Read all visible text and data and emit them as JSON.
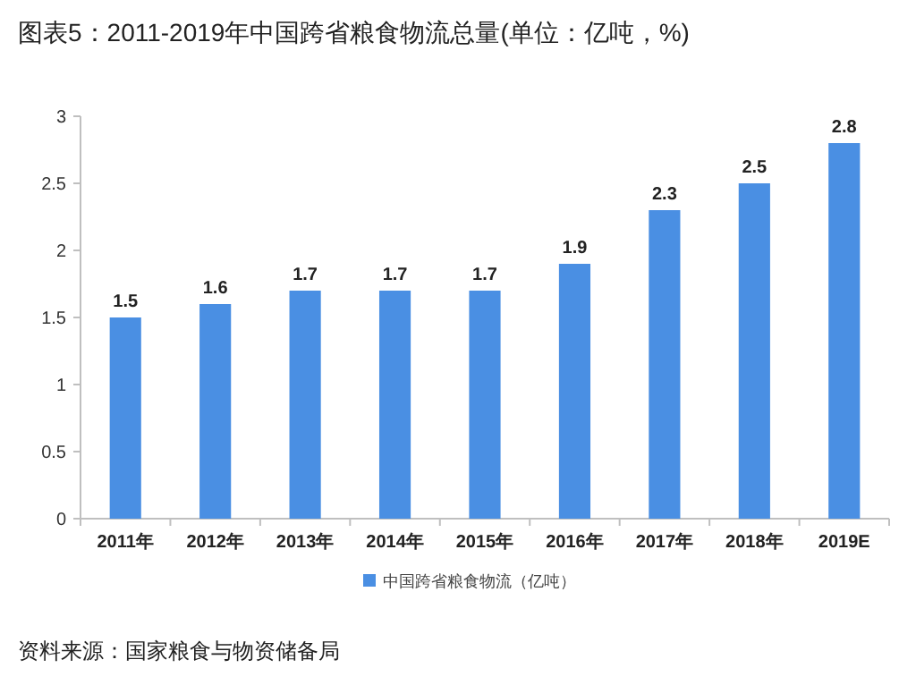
{
  "chart_data": {
    "type": "bar",
    "title": "图表5：2011-2019年中国跨省粮食物流总量(单位：亿吨，%)",
    "categories": [
      "2011年",
      "2012年",
      "2013年",
      "2014年",
      "2015年",
      "2016年",
      "2017年",
      "2018年",
      "2019E"
    ],
    "series": [
      {
        "name": "中国跨省粮食物流（亿吨）",
        "color": "#4a8fe3",
        "values": [
          1.5,
          1.6,
          1.7,
          1.7,
          1.7,
          1.9,
          2.3,
          2.5,
          2.8
        ]
      }
    ],
    "ylim": [
      0,
      3
    ],
    "yticks": [
      0,
      0.5,
      1,
      1.5,
      2,
      2.5,
      3
    ],
    "data_labels": true,
    "legend": "bottom",
    "grid": false,
    "annotations": [
      "资料来源：国家粮食与物资储备局"
    ]
  }
}
